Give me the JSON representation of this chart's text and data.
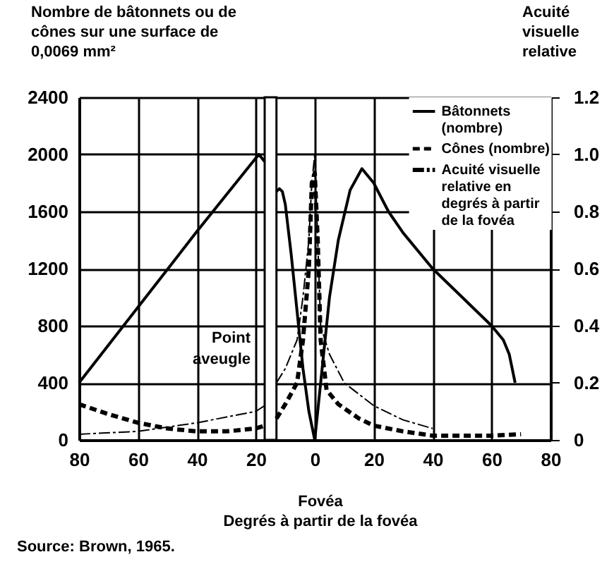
{
  "chart_data": {
    "type": "line",
    "ylabel": "Nombre de bâtonnets ou de cônes sur une surface de 0,0069 mm²",
    "y2label": "Acuité visuelle relative",
    "xlabel": "Degrés à partir de la fovéa",
    "annotations": [
      "Fovéa",
      "Source: Brown, 1965."
    ],
    "xlim": [
      -80,
      80
    ],
    "xticks": [
      {
        "value": -80,
        "label": "80"
      },
      {
        "value": -60,
        "label": "60"
      },
      {
        "value": -40,
        "label": "40"
      },
      {
        "value": -20,
        "label": "20"
      },
      0,
      20,
      40,
      60,
      80
    ],
    "ylim": [
      0,
      2400
    ],
    "yticks": [
      0,
      400,
      800,
      1200,
      1600,
      2000,
      2400
    ],
    "y2lim": [
      0,
      1.2
    ],
    "y2ticks": [
      0,
      0.2,
      0.4,
      0.6,
      0.8,
      {
        "value": 1,
        "label": "1.0"
      },
      1.2
    ],
    "grid": true,
    "legend": "top right",
    "bands": [
      {
        "axis": "x",
        "from": -17,
        "to": -13,
        "label": "Point aveugle",
        "color": "#ffffff"
      }
    ],
    "series": [
      {
        "name": "Bâtonnets (nombre)",
        "color": "#000000",
        "line_style": "solid",
        "x": [
          -80,
          -60,
          -40,
          -19,
          -17,
          -15,
          -13,
          -12,
          -11,
          -10,
          -8,
          -6,
          -4,
          -2,
          0,
          2,
          5,
          8,
          12,
          16,
          20,
          25,
          30,
          40,
          50,
          60,
          64,
          66,
          67,
          68
        ],
        "values": [
          400,
          930,
          1460,
          2000,
          1950,
          null,
          1740,
          1760,
          1740,
          1650,
          1300,
          900,
          500,
          200,
          0,
          400,
          1000,
          1400,
          1750,
          1900,
          1800,
          1600,
          1450,
          1200,
          1000,
          800,
          700,
          600,
          500,
          400
        ]
      },
      {
        "name": "Cônes (nombre)",
        "color": "#000000",
        "line_style": "dashed",
        "x": [
          -80,
          -70,
          -60,
          -50,
          -40,
          -30,
          -20,
          -17,
          -15,
          -13,
          -10,
          -6,
          -4,
          -2,
          -1,
          0,
          1,
          2,
          4,
          8,
          15,
          20,
          30,
          40,
          50,
          60,
          70
        ],
        "values": [
          250,
          180,
          120,
          80,
          60,
          60,
          80,
          100,
          null,
          150,
          250,
          400,
          700,
          1200,
          1800,
          1870,
          1400,
          700,
          350,
          250,
          150,
          100,
          60,
          30,
          30,
          30,
          40
        ]
      },
      {
        "name": "Acuité visuelle relative en degrés à partir de la fovéa",
        "color": "#000000",
        "line_style": "dashdot",
        "axis": "y2",
        "x": [
          -80,
          -60,
          -40,
          -20,
          -17,
          -15,
          -13,
          -10,
          -6,
          -4,
          -2,
          -1,
          0,
          1,
          2,
          5,
          10,
          20,
          30,
          40
        ],
        "values": [
          0.02,
          0.03,
          0.06,
          0.1,
          0.12,
          null,
          0.2,
          0.25,
          0.35,
          0.5,
          0.7,
          0.9,
          1.0,
          0.7,
          0.4,
          0.3,
          0.2,
          0.12,
          0.07,
          0.04
        ]
      }
    ]
  }
}
